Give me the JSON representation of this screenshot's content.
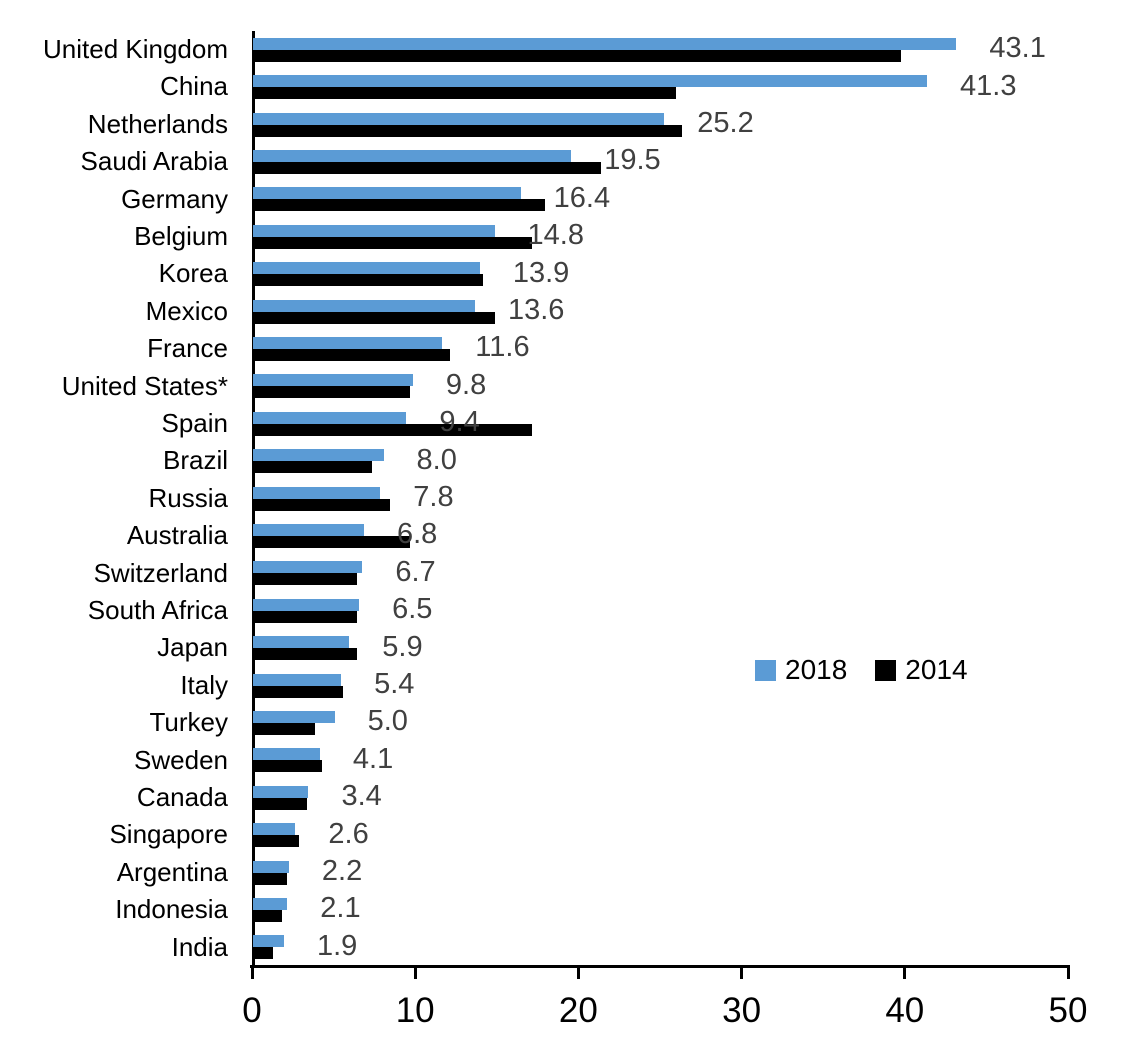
{
  "chart_data": {
    "type": "bar",
    "orientation": "horizontal",
    "title": "",
    "xlabel": "",
    "ylabel": "",
    "xlim": [
      0,
      50
    ],
    "x_ticks": [
      0,
      10,
      20,
      30,
      40,
      50
    ],
    "grid": false,
    "background": "#ffffff",
    "axis_color": "#000000",
    "value_label_color": "#404040",
    "legend": {
      "position": "middle-right",
      "entries": [
        "2018",
        "2014"
      ]
    },
    "categories": [
      "United Kingdom",
      "China",
      "Netherlands",
      "Saudi Arabia",
      "Germany",
      "Belgium",
      "Korea",
      "Mexico",
      "France",
      "United States*",
      "Spain",
      "Brazil",
      "Russia",
      "Australia",
      "Switzerland",
      "South Africa",
      "Japan",
      "Italy",
      "Turkey",
      "Sweden",
      "Canada",
      "Singapore",
      "Argentina",
      "Indonesia",
      "India"
    ],
    "series": [
      {
        "name": "2018",
        "color": "#5B9BD5",
        "values": [
          43.1,
          41.3,
          25.2,
          19.5,
          16.4,
          14.8,
          13.9,
          13.6,
          11.6,
          9.8,
          9.4,
          8.0,
          7.8,
          6.8,
          6.7,
          6.5,
          5.9,
          5.4,
          5.0,
          4.1,
          3.4,
          2.6,
          2.2,
          2.1,
          1.9
        ],
        "labels_shown": true
      },
      {
        "name": "2014",
        "color": "#000000",
        "values": [
          39.7,
          25.9,
          26.3,
          21.3,
          17.9,
          17.1,
          14.1,
          14.8,
          12.1,
          9.6,
          17.1,
          7.3,
          8.4,
          9.6,
          6.4,
          6.4,
          6.4,
          5.5,
          3.8,
          4.2,
          3.3,
          2.8,
          2.1,
          1.8,
          1.2
        ],
        "labels_shown": false,
        "note": "values estimated from bar lengths; not labeled in chart"
      }
    ],
    "data_labels": [
      "43.1",
      "41.3",
      "25.2",
      "19.5",
      "16.4",
      "14.8",
      "13.9",
      "13.6",
      "11.6",
      "9.8",
      "9.4",
      "8.0",
      "7.8",
      "6.8",
      "6.7",
      "6.5",
      "5.9",
      "5.4",
      "5.0",
      "4.1",
      "3.4",
      "2.6",
      "2.2",
      "2.1",
      "1.9"
    ]
  }
}
